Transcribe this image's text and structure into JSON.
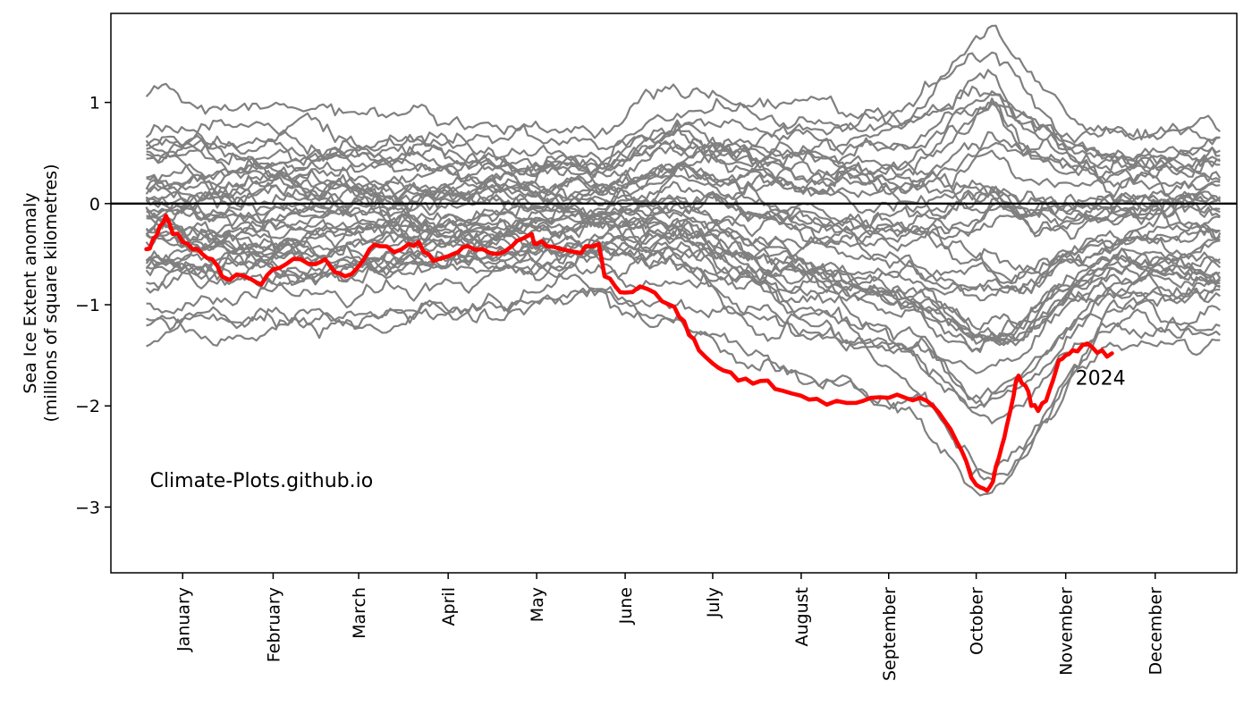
{
  "chart_data": {
    "type": "line",
    "title": "",
    "xlabel": "",
    "ylabel_lines": [
      "Sea Ice Extent anomaly",
      "(millions of square kilometres)"
    ],
    "ylim": [
      -3.65,
      1.88
    ],
    "xlim_day": [
      -18,
      1127
    ],
    "yticks": [
      1,
      0,
      -1,
      -2,
      -3
    ],
    "ytick_labels": [
      "1",
      "0",
      "−1",
      "−2",
      "−3"
    ],
    "month_ticks": [
      {
        "label": "January",
        "day": 55
      },
      {
        "label": "February",
        "day": 147
      },
      {
        "label": "March",
        "day": 234
      },
      {
        "label": "April",
        "day": 325
      },
      {
        "label": "May",
        "day": 415
      },
      {
        "label": "June",
        "day": 505
      },
      {
        "label": "July",
        "day": 594
      },
      {
        "label": "August",
        "day": 684
      },
      {
        "label": "September",
        "day": 773
      },
      {
        "label": "October",
        "day": 862
      },
      {
        "label": "November",
        "day": 953
      },
      {
        "label": "December",
        "day": 1044
      }
    ],
    "zero_line": 0,
    "grid": false,
    "legend": "none",
    "historical_color": "#808080",
    "highlight_color": "#ff0000",
    "historical": {
      "count": 42,
      "note_values_from_image": "Grey lines: historical years' daily anomalies",
      "profile_days": [
        18,
        200,
        480,
        560,
        640,
        720,
        800,
        860,
        880,
        910,
        960,
        1000,
        1110
      ],
      "profile_center": [
        -0.15,
        -0.15,
        -0.1,
        0.0,
        -0.2,
        -0.35,
        -0.45,
        -0.55,
        -0.5,
        -0.55,
        -0.4,
        -0.3,
        -0.25
      ],
      "profile_halfspread": [
        0.85,
        0.8,
        0.6,
        0.9,
        1.05,
        1.15,
        1.3,
        1.85,
        1.9,
        1.55,
        1.05,
        0.85,
        0.85
      ]
    },
    "series": [
      {
        "name": "2024",
        "label_text": "2024",
        "label_at": {
          "day": 963,
          "y": -1.72
        },
        "points": [
          [
            18,
            -0.45
          ],
          [
            25,
            -0.35
          ],
          [
            32,
            -0.22
          ],
          [
            38,
            -0.12
          ],
          [
            45,
            -0.3
          ],
          [
            55,
            -0.38
          ],
          [
            65,
            -0.45
          ],
          [
            75,
            -0.5
          ],
          [
            85,
            -0.55
          ],
          [
            95,
            -0.72
          ],
          [
            110,
            -0.7
          ],
          [
            125,
            -0.75
          ],
          [
            135,
            -0.8
          ],
          [
            147,
            -0.65
          ],
          [
            160,
            -0.6
          ],
          [
            175,
            -0.55
          ],
          [
            190,
            -0.6
          ],
          [
            200,
            -0.55
          ],
          [
            210,
            -0.68
          ],
          [
            220,
            -0.72
          ],
          [
            234,
            -0.62
          ],
          [
            245,
            -0.45
          ],
          [
            255,
            -0.42
          ],
          [
            270,
            -0.48
          ],
          [
            285,
            -0.4
          ],
          [
            295,
            -0.38
          ],
          [
            305,
            -0.5
          ],
          [
            315,
            -0.55
          ],
          [
            325,
            -0.52
          ],
          [
            335,
            -0.48
          ],
          [
            345,
            -0.42
          ],
          [
            360,
            -0.45
          ],
          [
            375,
            -0.5
          ],
          [
            390,
            -0.42
          ],
          [
            400,
            -0.35
          ],
          [
            410,
            -0.3
          ],
          [
            415,
            -0.4
          ],
          [
            425,
            -0.42
          ],
          [
            440,
            -0.45
          ],
          [
            455,
            -0.48
          ],
          [
            465,
            -0.42
          ],
          [
            478,
            -0.4
          ],
          [
            484,
            -0.72
          ],
          [
            495,
            -0.82
          ],
          [
            505,
            -0.88
          ],
          [
            520,
            -0.82
          ],
          [
            535,
            -0.88
          ],
          [
            550,
            -1.0
          ],
          [
            560,
            -1.12
          ],
          [
            570,
            -1.3
          ],
          [
            580,
            -1.45
          ],
          [
            594,
            -1.58
          ],
          [
            605,
            -1.65
          ],
          [
            620,
            -1.75
          ],
          [
            635,
            -1.78
          ],
          [
            650,
            -1.75
          ],
          [
            665,
            -1.85
          ],
          [
            684,
            -1.9
          ],
          [
            700,
            -1.93
          ],
          [
            720,
            -1.95
          ],
          [
            740,
            -1.97
          ],
          [
            755,
            -1.92
          ],
          [
            773,
            -1.92
          ],
          [
            790,
            -1.92
          ],
          [
            805,
            -1.92
          ],
          [
            818,
            -2.0
          ],
          [
            830,
            -2.15
          ],
          [
            842,
            -2.35
          ],
          [
            852,
            -2.55
          ],
          [
            862,
            -2.78
          ],
          [
            870,
            -2.82
          ],
          [
            876,
            -2.8
          ],
          [
            882,
            -2.6
          ],
          [
            888,
            -2.4
          ],
          [
            893,
            -2.2
          ],
          [
            900,
            -1.9
          ],
          [
            905,
            -1.7
          ],
          [
            912,
            -1.8
          ],
          [
            918,
            -2.0
          ],
          [
            925,
            -2.05
          ],
          [
            933,
            -1.95
          ],
          [
            940,
            -1.75
          ],
          [
            946,
            -1.55
          ],
          [
            953,
            -1.5
          ],
          [
            960,
            -1.45
          ],
          [
            970,
            -1.4
          ],
          [
            980,
            -1.42
          ],
          [
            990,
            -1.45
          ],
          [
            1000,
            -1.48
          ]
        ]
      }
    ],
    "annotations": [
      {
        "text": "Climate-Plots.github.io",
        "at": {
          "day": 18,
          "y": -2.73
        }
      }
    ]
  }
}
